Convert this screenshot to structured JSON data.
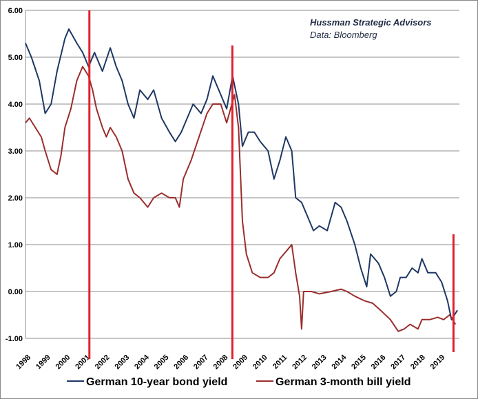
{
  "chart_data": {
    "type": "line",
    "annotations": [
      "Hussman Strategic Advisors",
      "Data: Bloomberg"
    ],
    "ylim": [
      -1,
      6
    ],
    "yticks": [
      "6.00",
      "5.00",
      "4.00",
      "3.00",
      "2.00",
      "1.00",
      "0.00",
      "-1.00"
    ],
    "xlim": [
      1998,
      2020
    ],
    "xticks": [
      "1998",
      "1999",
      "2000",
      "2001",
      "2002",
      "2003",
      "2004",
      "2005",
      "2006",
      "2007",
      "2008",
      "2009",
      "2010",
      "2011",
      "2012",
      "2013",
      "2014",
      "2015",
      "2016",
      "2017",
      "2018",
      "2019"
    ],
    "grid": true,
    "legend_position": "bottom",
    "vertical_markers": {
      "color": "#e0202a",
      "x": [
        2001.24,
        2008.49,
        2019.7
      ]
    },
    "series": [
      {
        "name": "German 10-year bond yield",
        "color": "#1f3864",
        "x": [
          1998.0,
          1998.3,
          1998.7,
          1999.0,
          1999.3,
          1999.6,
          2000.0,
          2000.2,
          2000.6,
          2000.9,
          2001.2,
          2001.5,
          2001.9,
          2002.3,
          2002.6,
          2002.9,
          2003.2,
          2003.5,
          2003.8,
          2004.2,
          2004.5,
          2004.9,
          2005.3,
          2005.6,
          2005.9,
          2006.2,
          2006.5,
          2006.9,
          2007.2,
          2007.5,
          2007.9,
          2008.2,
          2008.5,
          2008.8,
          2009.0,
          2009.3,
          2009.6,
          2009.9,
          2010.3,
          2010.6,
          2010.9,
          2011.2,
          2011.5,
          2011.7,
          2012.0,
          2012.4,
          2012.6,
          2012.9,
          2013.3,
          2013.7,
          2014.0,
          2014.3,
          2014.7,
          2015.0,
          2015.3,
          2015.5,
          2015.9,
          2016.2,
          2016.5,
          2016.8,
          2017.0,
          2017.3,
          2017.6,
          2017.9,
          2018.1,
          2018.4,
          2018.8,
          2019.1,
          2019.4,
          2019.6,
          2019.9
        ],
        "y": [
          5.3,
          5.0,
          4.5,
          3.8,
          4.0,
          4.7,
          5.4,
          5.6,
          5.3,
          5.1,
          4.8,
          5.1,
          4.7,
          5.2,
          4.8,
          4.5,
          4.0,
          3.7,
          4.3,
          4.1,
          4.3,
          3.7,
          3.4,
          3.2,
          3.4,
          3.7,
          4.0,
          3.8,
          4.1,
          4.6,
          4.2,
          3.9,
          4.6,
          4.0,
          3.1,
          3.4,
          3.4,
          3.2,
          3.0,
          2.4,
          2.8,
          3.3,
          3.0,
          2.0,
          1.9,
          1.5,
          1.3,
          1.4,
          1.3,
          1.9,
          1.8,
          1.5,
          1.0,
          0.5,
          0.1,
          0.8,
          0.6,
          0.3,
          -0.1,
          0.0,
          0.3,
          0.3,
          0.5,
          0.4,
          0.7,
          0.4,
          0.4,
          0.2,
          -0.2,
          -0.6,
          -0.4
        ]
      },
      {
        "name": "German 3-month bill yield",
        "color": "#9b2d2d",
        "x": [
          1998.0,
          1998.2,
          1998.5,
          1998.8,
          1999.0,
          1999.3,
          1999.6,
          1999.8,
          2000.0,
          2000.3,
          2000.6,
          2000.9,
          2001.2,
          2001.4,
          2001.6,
          2001.9,
          2002.1,
          2002.3,
          2002.6,
          2002.9,
          2003.2,
          2003.5,
          2003.8,
          2004.2,
          2004.5,
          2004.9,
          2005.3,
          2005.6,
          2005.8,
          2006.0,
          2006.4,
          2006.8,
          2007.2,
          2007.5,
          2007.9,
          2008.2,
          2008.6,
          2008.8,
          2009.0,
          2009.2,
          2009.5,
          2009.9,
          2010.3,
          2010.6,
          2010.9,
          2011.3,
          2011.5,
          2011.7,
          2011.9,
          2012.0,
          2012.1,
          2012.5,
          2012.9,
          2013.5,
          2014.0,
          2014.3,
          2014.7,
          2015.2,
          2015.6,
          2016.0,
          2016.5,
          2016.9,
          2017.2,
          2017.5,
          2017.9,
          2018.1,
          2018.5,
          2018.9,
          2019.2,
          2019.5,
          2019.8
        ],
        "y": [
          3.6,
          3.7,
          3.5,
          3.3,
          3.0,
          2.6,
          2.5,
          2.9,
          3.5,
          3.9,
          4.5,
          4.8,
          4.6,
          4.3,
          3.9,
          3.5,
          3.3,
          3.5,
          3.3,
          3.0,
          2.4,
          2.1,
          2.0,
          1.8,
          2.0,
          2.1,
          2.0,
          2.0,
          1.8,
          2.4,
          2.8,
          3.3,
          3.8,
          4.0,
          4.0,
          3.6,
          4.2,
          3.5,
          1.5,
          0.8,
          0.4,
          0.3,
          0.3,
          0.4,
          0.7,
          0.9,
          1.0,
          0.4,
          -0.1,
          -0.8,
          0.0,
          0.0,
          -0.05,
          0.0,
          0.05,
          0.0,
          -0.1,
          -0.2,
          -0.25,
          -0.4,
          -0.6,
          -0.85,
          -0.8,
          -0.7,
          -0.8,
          -0.6,
          -0.6,
          -0.55,
          -0.6,
          -0.5,
          -0.7
        ]
      }
    ]
  }
}
